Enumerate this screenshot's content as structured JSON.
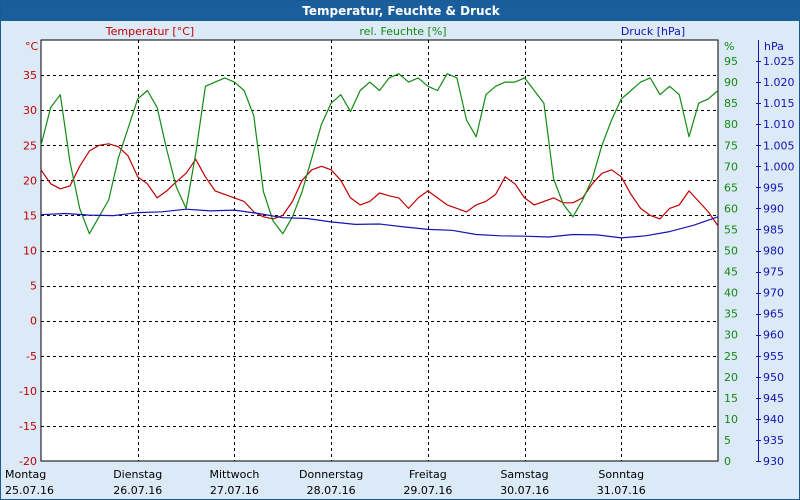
{
  "window": {
    "title": "Temperatur, Feuchte & Druck"
  },
  "colors": {
    "temperature": "#c00000",
    "humidity": "#138a13",
    "pressure": "#1414b4",
    "grid": "#000000",
    "plot_bg": "#ffffff"
  },
  "chart_data": {
    "type": "line",
    "title": "Temperatur, Feuchte & Druck",
    "grid": true,
    "x_categories": [
      {
        "day": "Montag",
        "date": "25.07.16"
      },
      {
        "day": "Dienstag",
        "date": "26.07.16"
      },
      {
        "day": "Mittwoch",
        "date": "27.07.16"
      },
      {
        "day": "Donnerstag",
        "date": "28.07.16"
      },
      {
        "day": "Freitag",
        "date": "29.07.16"
      },
      {
        "day": "Samstag",
        "date": "30.07.16"
      },
      {
        "day": "Sonntag",
        "date": "31.07.16"
      }
    ],
    "axes": {
      "temperature": {
        "label": "Temperatur [°C]",
        "unit": "°C",
        "range": [
          -20,
          40
        ],
        "ticks": [
          "-20",
          "-15",
          "-10",
          "-5",
          "0",
          "5",
          "10",
          "15",
          "20",
          "25",
          "30",
          "35"
        ]
      },
      "humidity": {
        "label": "rel. Feuchte [%]",
        "unit": "%",
        "range": [
          0,
          100
        ],
        "ticks": [
          "0",
          "5",
          "10",
          "15",
          "20",
          "25",
          "30",
          "35",
          "40",
          "45",
          "50",
          "55",
          "60",
          "65",
          "70",
          "75",
          "80",
          "85",
          "90",
          "95"
        ]
      },
      "pressure": {
        "label": "Druck [hPa]",
        "unit": "hPa",
        "range": [
          930,
          1030
        ],
        "ticks": [
          "930",
          "935",
          "940",
          "945",
          "950",
          "955",
          "960",
          "965",
          "970",
          "975",
          "980",
          "985",
          "990",
          "995",
          "1.000",
          "1.005",
          "1.010",
          "1.015",
          "1.020",
          "1.025"
        ]
      }
    },
    "series": [
      {
        "name": "Temperatur [°C]",
        "axis": "temperature",
        "x": [
          0,
          0.1,
          0.2,
          0.3,
          0.4,
          0.5,
          0.6,
          0.7,
          0.8,
          0.9,
          1.0,
          1.1,
          1.2,
          1.3,
          1.4,
          1.5,
          1.6,
          1.7,
          1.8,
          1.9,
          2.0,
          2.1,
          2.2,
          2.3,
          2.4,
          2.5,
          2.6,
          2.7,
          2.8,
          2.9,
          3.0,
          3.1,
          3.2,
          3.3,
          3.4,
          3.5,
          3.6,
          3.7,
          3.8,
          3.9,
          4.0,
          4.1,
          4.2,
          4.3,
          4.4,
          4.5,
          4.6,
          4.7,
          4.8,
          4.9,
          5.0,
          5.1,
          5.2,
          5.3,
          5.4,
          5.5,
          5.6,
          5.7,
          5.8,
          5.9,
          6.0,
          6.1,
          6.2,
          6.3,
          6.4,
          6.5,
          6.6,
          6.7,
          6.8,
          6.9,
          7.0
        ],
        "values": [
          21.5,
          19.5,
          18.8,
          19.2,
          22,
          24.2,
          25,
          25.2,
          24.8,
          23.5,
          20.5,
          19.5,
          17.5,
          18.5,
          19.8,
          21,
          23,
          20.5,
          18.5,
          18,
          17.5,
          17,
          15.5,
          14.8,
          14.5,
          15,
          17,
          20,
          21.5,
          22,
          21.5,
          20,
          17.5,
          16.5,
          17,
          18.2,
          17.8,
          17.5,
          16,
          17.5,
          18.5,
          17.5,
          16.5,
          16,
          15.5,
          16.5,
          17,
          18,
          20.5,
          19.5,
          17.5,
          16.5,
          17,
          17.5,
          16.8,
          16.8,
          17.5,
          19.5,
          21,
          21.5,
          20.5,
          18,
          16,
          15,
          14.5,
          16,
          16.5,
          18.5,
          17,
          15.5,
          13.5
        ]
      },
      {
        "name": "rel. Feuchte [%]",
        "axis": "humidity",
        "x": [
          0,
          0.1,
          0.2,
          0.3,
          0.4,
          0.5,
          0.6,
          0.7,
          0.8,
          0.9,
          1.0,
          1.1,
          1.2,
          1.3,
          1.4,
          1.5,
          1.6,
          1.7,
          1.8,
          1.9,
          2.0,
          2.1,
          2.2,
          2.3,
          2.4,
          2.5,
          2.6,
          2.7,
          2.8,
          2.9,
          3.0,
          3.1,
          3.2,
          3.3,
          3.4,
          3.5,
          3.6,
          3.7,
          3.8,
          3.9,
          4.0,
          4.1,
          4.2,
          4.3,
          4.4,
          4.5,
          4.6,
          4.7,
          4.8,
          4.9,
          5.0,
          5.1,
          5.2,
          5.3,
          5.4,
          5.5,
          5.6,
          5.7,
          5.8,
          5.9,
          6.0,
          6.1,
          6.2,
          6.3,
          6.4,
          6.5,
          6.6,
          6.7,
          6.8,
          6.9,
          7.0
        ],
        "values": [
          75,
          84,
          87,
          71,
          60,
          54,
          58,
          62,
          72,
          79,
          86,
          88,
          84,
          74,
          65,
          60,
          73,
          89,
          90,
          91,
          90,
          88,
          82,
          64,
          57,
          54,
          58,
          64,
          72,
          80,
          85,
          87,
          83,
          88,
          90,
          88,
          91,
          92,
          90,
          91,
          89,
          88,
          92,
          91,
          81,
          77,
          87,
          89,
          90,
          90,
          91,
          88,
          85,
          67,
          61,
          58,
          62,
          67,
          75,
          81,
          86,
          88,
          90,
          91,
          87,
          89,
          87,
          77,
          85,
          86,
          88
        ]
      },
      {
        "name": "Druck [hPa]",
        "axis": "pressure",
        "x": [
          0,
          0.25,
          0.5,
          0.75,
          1.0,
          1.25,
          1.5,
          1.75,
          2.0,
          2.25,
          2.5,
          2.75,
          3.0,
          3.25,
          3.5,
          3.75,
          4.0,
          4.25,
          4.5,
          4.75,
          5.0,
          5.25,
          5.5,
          5.75,
          6.0,
          6.25,
          6.5,
          6.75,
          7.0
        ],
        "values": [
          988.5,
          988.8,
          988.4,
          988.3,
          989,
          989.2,
          989.8,
          989.4,
          989.6,
          988.8,
          987.8,
          987.6,
          986.8,
          986.2,
          986.3,
          985.6,
          985,
          984.8,
          983.8,
          983.5,
          983.4,
          983.2,
          983.8,
          983.7,
          983,
          983.5,
          984.5,
          986,
          988
        ]
      }
    ]
  }
}
